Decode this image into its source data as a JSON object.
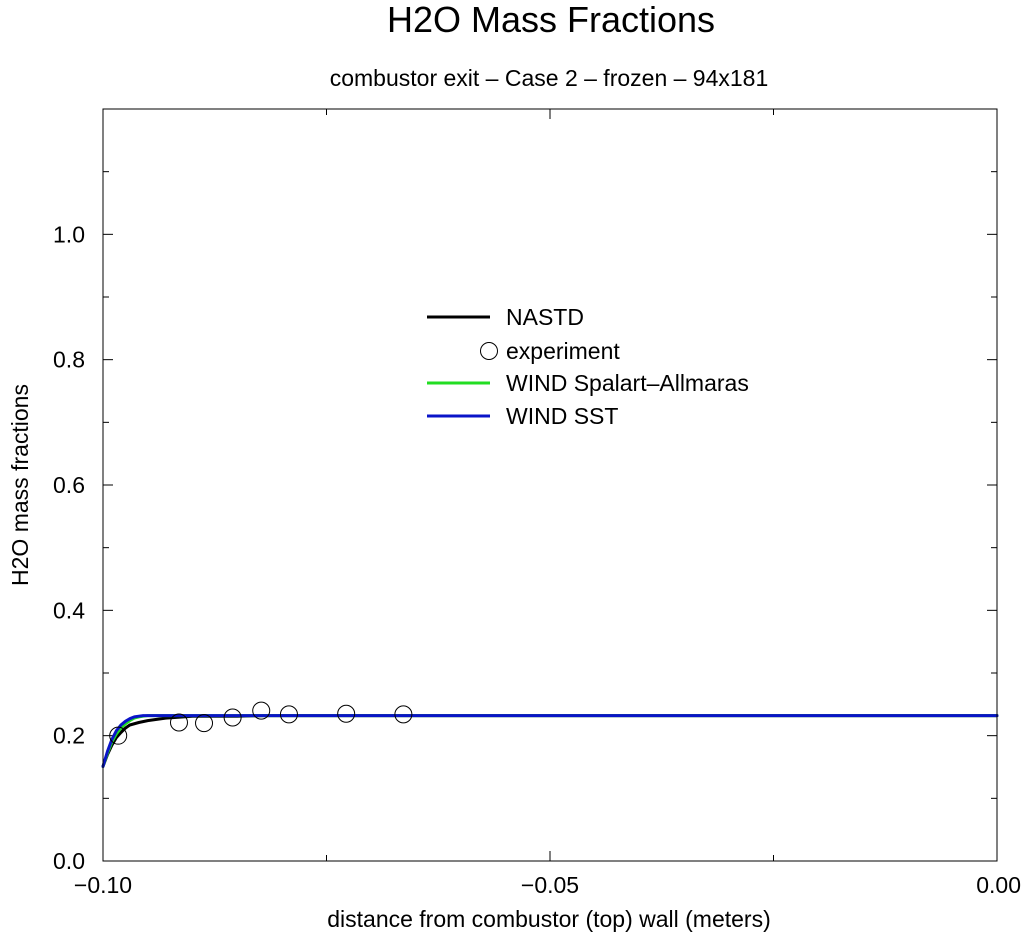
{
  "chart_data": {
    "type": "line",
    "title": "H2O Mass Fractions",
    "subtitle": "combustor exit – Case 2 – frozen – 94x181",
    "xlabel": "distance from combustor (top) wall (meters)",
    "ylabel": "H2O mass fractions",
    "xlim": [
      -0.1,
      0.0
    ],
    "ylim": [
      0.0,
      1.2
    ],
    "xticks": [
      -0.1,
      -0.05,
      0.0
    ],
    "xtick_labels": [
      "−0.10",
      "−0.05",
      "0.00"
    ],
    "xticks_minor": [
      -0.075,
      -0.025
    ],
    "yticks": [
      0.0,
      0.2,
      0.4,
      0.6,
      0.8,
      1.0
    ],
    "ytick_labels": [
      "0.0",
      "0.2",
      "0.4",
      "0.6",
      "0.8",
      "1.0"
    ],
    "yticks_minor": [
      0.1,
      0.3,
      0.5,
      0.7,
      0.9,
      1.1
    ],
    "grid": false,
    "legend_position": "center",
    "series": [
      {
        "name": "NASTD",
        "kind": "line",
        "color": "#000000",
        "x": [
          -0.1,
          -0.0995,
          -0.099,
          -0.0985,
          -0.098,
          -0.0975,
          -0.097,
          -0.096,
          -0.095,
          -0.094,
          -0.093,
          -0.092,
          -0.091,
          -0.09,
          -0.088,
          -0.085,
          -0.082,
          -0.078,
          -0.074,
          -0.07,
          -0.06,
          -0.05,
          -0.04,
          -0.03,
          -0.02,
          -0.01,
          0.0
        ],
        "y": [
          0.151,
          0.17,
          0.185,
          0.197,
          0.205,
          0.212,
          0.217,
          0.221,
          0.224,
          0.226,
          0.228,
          0.229,
          0.23,
          0.231,
          0.231,
          0.231,
          0.232,
          0.232,
          0.232,
          0.232,
          0.232,
          0.232,
          0.232,
          0.232,
          0.232,
          0.232,
          0.232
        ]
      },
      {
        "name": "experiment",
        "kind": "scatter",
        "color": "#000000",
        "x": [
          -0.0983,
          -0.0915,
          -0.0887,
          -0.0855,
          -0.0823,
          -0.0792,
          -0.0728,
          -0.0664
        ],
        "y": [
          0.2,
          0.221,
          0.22,
          0.229,
          0.24,
          0.234,
          0.235,
          0.234
        ]
      },
      {
        "name": "WIND Spalart–Allmaras",
        "kind": "line",
        "color": "#22dd22",
        "x": [
          -0.1,
          -0.0995,
          -0.099,
          -0.0985,
          -0.098,
          -0.0975,
          -0.097,
          -0.0965,
          -0.096,
          -0.0955,
          -0.095,
          -0.094,
          -0.09,
          -0.08,
          -0.06,
          -0.04,
          -0.02,
          0.0
        ],
        "y": [
          0.151,
          0.172,
          0.19,
          0.203,
          0.212,
          0.219,
          0.224,
          0.228,
          0.23,
          0.231,
          0.232,
          0.232,
          0.232,
          0.232,
          0.232,
          0.232,
          0.232,
          0.232
        ]
      },
      {
        "name": "WIND SST",
        "kind": "line",
        "color": "#0a14c8",
        "x": [
          -0.1,
          -0.0995,
          -0.099,
          -0.0985,
          -0.098,
          -0.0975,
          -0.097,
          -0.0965,
          -0.096,
          -0.0955,
          -0.095,
          -0.094,
          -0.09,
          -0.08,
          -0.06,
          -0.04,
          -0.02,
          0.0
        ],
        "y": [
          0.151,
          0.175,
          0.194,
          0.208,
          0.217,
          0.223,
          0.227,
          0.23,
          0.231,
          0.232,
          0.232,
          0.232,
          0.232,
          0.232,
          0.232,
          0.232,
          0.232,
          0.232
        ]
      }
    ]
  }
}
